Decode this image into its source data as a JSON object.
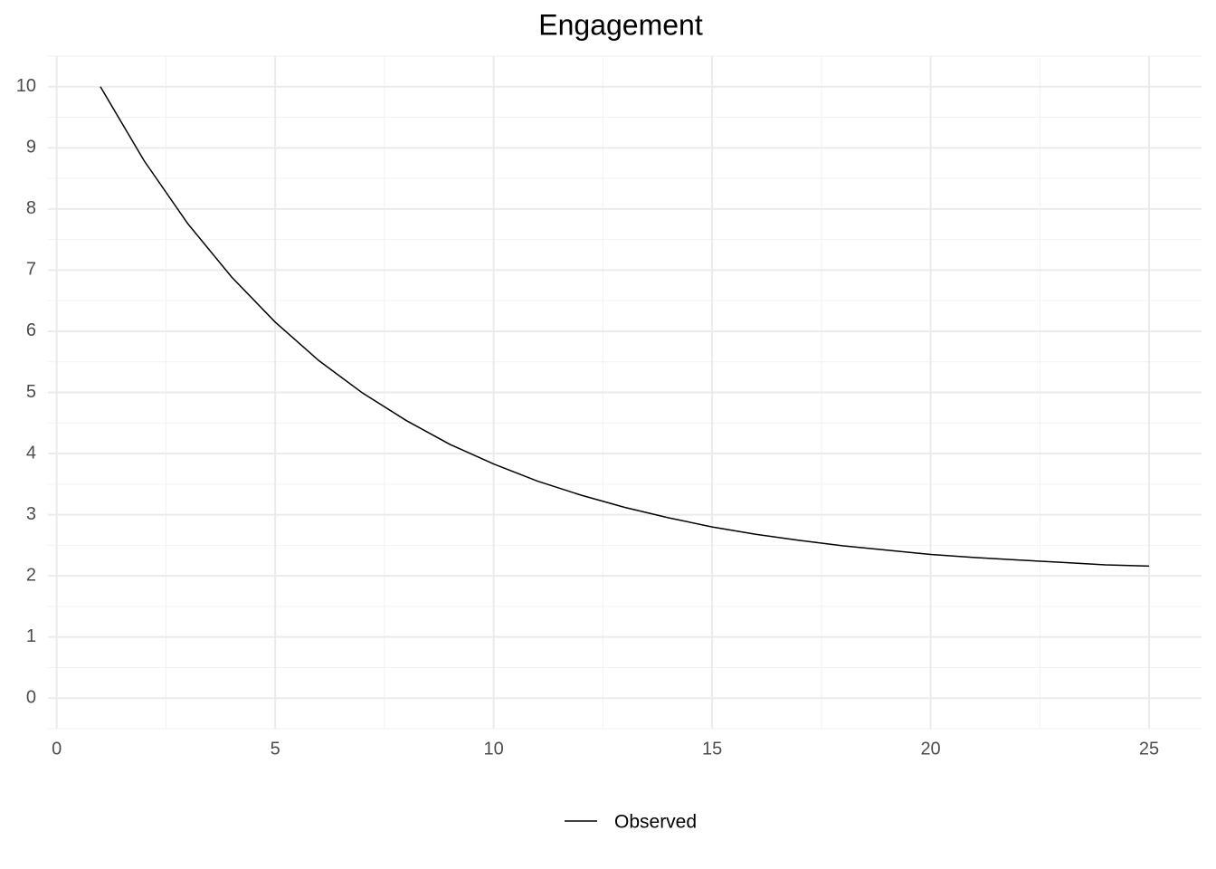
{
  "chart_data": {
    "type": "line",
    "title": "Engagement",
    "x": [
      1,
      2,
      3,
      4,
      5,
      6,
      7,
      8,
      9,
      10,
      11,
      12,
      13,
      14,
      15,
      16,
      17,
      18,
      19,
      20,
      21,
      22,
      23,
      24,
      25
    ],
    "series": [
      {
        "name": "Observed",
        "color": "#000000",
        "values": [
          10,
          8.79,
          7.76,
          6.89,
          6.15,
          5.52,
          4.99,
          4.54,
          4.15,
          3.83,
          3.55,
          3.32,
          3.12,
          2.95,
          2.8,
          2.68,
          2.58,
          2.49,
          2.42,
          2.35,
          2.3,
          2.26,
          2.22,
          2.18,
          2.16
        ]
      }
    ],
    "xlim": [
      -0.2,
      26.2
    ],
    "ylim": [
      -0.5,
      10.5
    ],
    "xticks": [
      0,
      5,
      10,
      15,
      20,
      25
    ],
    "yticks": [
      0,
      1,
      2,
      3,
      4,
      5,
      6,
      7,
      8,
      9,
      10
    ],
    "grid": true,
    "minor_grid": true,
    "legend": "bottom"
  }
}
